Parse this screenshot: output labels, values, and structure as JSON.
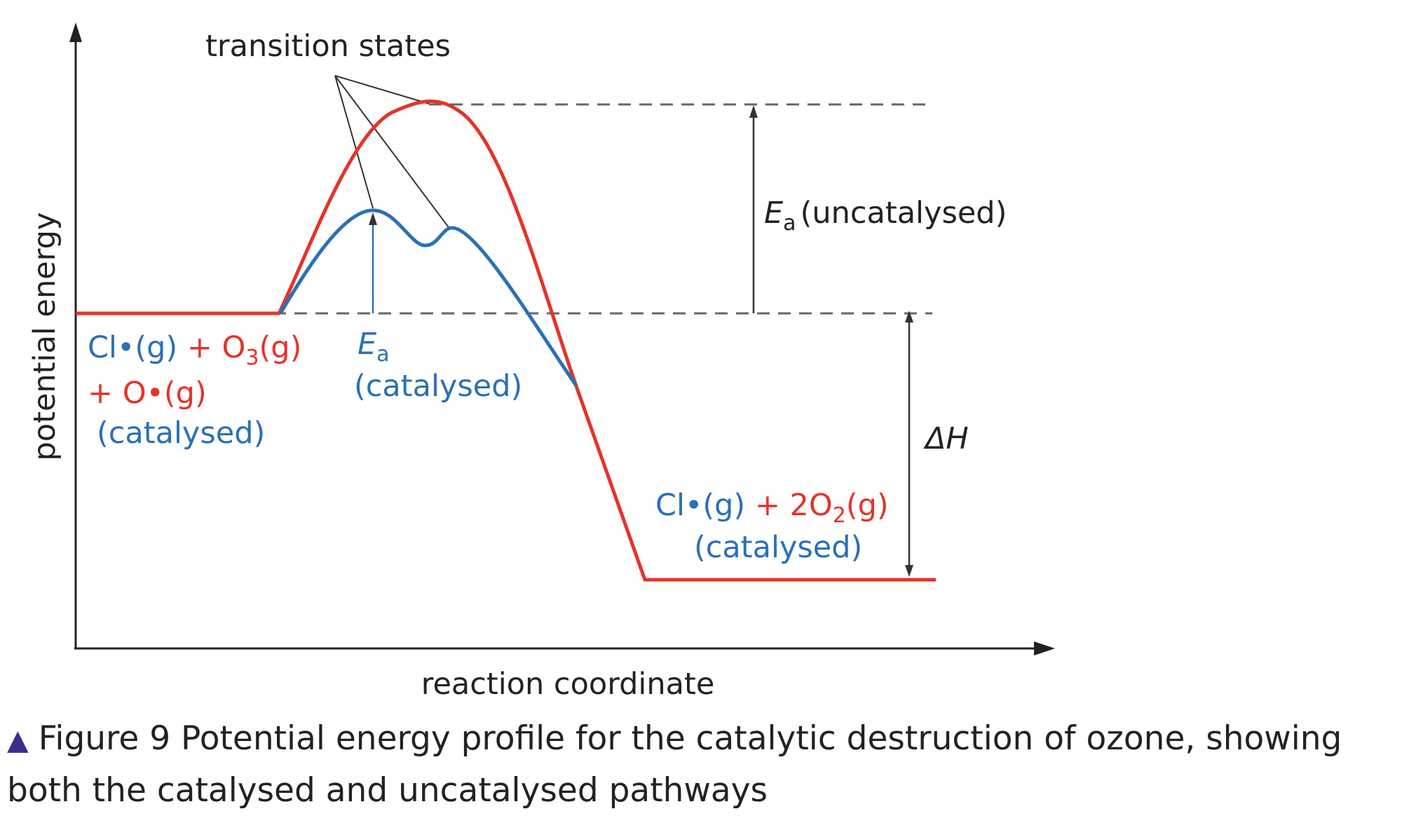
{
  "diagram": {
    "y_axis_label": "potential energy",
    "x_axis_label": "reaction coordinate",
    "transition_states_label": "transition states",
    "reactants": {
      "line1_blue": "Cl•(g)",
      "line1_red": " + O",
      "line1_red_sub": "3",
      "line1_red_end": "(g)",
      "line2_red": "+ O•(g)",
      "line3_blue": "(catalysed)"
    },
    "ea_catalysed": {
      "symbol": "E",
      "sub": "a",
      "note": "(catalysed)"
    },
    "ea_uncatalysed": {
      "symbol": "E",
      "sub": "a",
      "note": "(uncatalysed)"
    },
    "delta_h": {
      "symbol": "ΔH"
    },
    "products": {
      "line1_blue": "Cl•(g)",
      "line1_red": " + 2O",
      "line1_red_sub": "2",
      "line1_red_end": "(g)",
      "line2_blue": "(catalysed)"
    },
    "colors": {
      "catalysed": "#2a70b8",
      "uncatalysed": "#e5332a",
      "axes": "#222222"
    }
  },
  "caption": {
    "marker_icon": "triangle-up-icon",
    "text": "Figure 9 Potential energy profile for the catalytic destruction of ozone, showing both the catalysed and uncatalysed pathways"
  }
}
